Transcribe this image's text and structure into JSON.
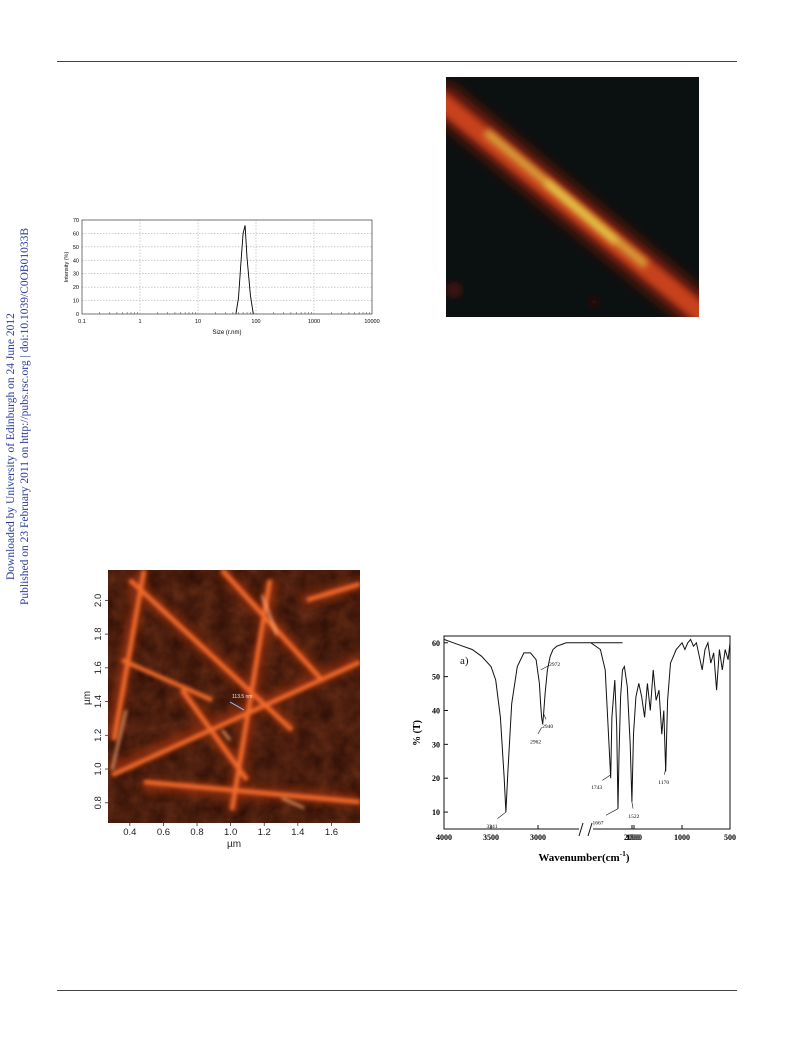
{
  "sidebar": {
    "downloaded": "Downloaded by University of Edinburgh on 24 June 2012",
    "published": "Published on 23 February 2011 on http://pubs.rsc.org | doi:10.1039/C0OB01033B"
  },
  "colors": {
    "sidebar_text": "#2b3b9c",
    "afm_dark": "#2a0c04",
    "afm_bright": "#ff9a5a",
    "fluorescence_bg": "#0b1010"
  },
  "chart_data": [
    {
      "type": "line",
      "title": "",
      "xlabel": "Size (r.nm)",
      "ylabel": "Intensity (%)",
      "x_scale": "log",
      "xlim": [
        0.1,
        10000
      ],
      "ylim": [
        0,
        70
      ],
      "x_ticks": [
        "0.1",
        "1",
        "10",
        "100",
        "1000",
        "10000"
      ],
      "y_ticks": [
        "0",
        "10",
        "20",
        "30",
        "40",
        "50",
        "60",
        "70"
      ],
      "grid": true,
      "series": [
        {
          "x": [
            45,
            50,
            55,
            60,
            65,
            70,
            80,
            90
          ],
          "y": [
            0,
            12,
            38,
            60,
            66,
            42,
            14,
            0
          ]
        }
      ]
    },
    {
      "type": "line",
      "title": "",
      "panel_label": "a)",
      "xlabel": "Wavenumber(cm-1)",
      "xlabel_base": "Wavenumber(cm",
      "xlabel_sup": "-1",
      "xlabel_close": ")",
      "ylabel": "% (T)",
      "xlim": [
        4000,
        500
      ],
      "ylim": [
        5,
        62
      ],
      "x_ticks": [
        "4000",
        "3500",
        "3000",
        "2000",
        "1500",
        "1000",
        "500"
      ],
      "y_ticks": [
        "10",
        "20",
        "30",
        "40",
        "50",
        "60"
      ],
      "axis_break": true,
      "peak_labels": [
        {
          "label": "3341",
          "x": 3341,
          "y": 10
        },
        {
          "label": "2962",
          "x": 2962,
          "y": 35
        },
        {
          "label": "2940",
          "x": 2940,
          "y": 39
        },
        {
          "label": "2972",
          "x": 2972,
          "y": 52
        },
        {
          "label": "1743",
          "x": 1743,
          "y": 21
        },
        {
          "label": "1667",
          "x": 1667,
          "y": 11
        },
        {
          "label": "1522",
          "x": 1522,
          "y": 13
        },
        {
          "label": "1170",
          "x": 1170,
          "y": 23
        }
      ],
      "series": [
        {
          "x": [
            4000,
            3900,
            3800,
            3700,
            3600,
            3500,
            3450,
            3400,
            3360,
            3341,
            3320,
            3280,
            3220,
            3150,
            3080,
            3020,
            2985,
            2972,
            2962,
            2950,
            2940,
            2925,
            2900,
            2870,
            2840,
            2800,
            2750,
            2700,
            2600,
            2500,
            2300,
            2100,
            1950,
            1850,
            1800,
            1760,
            1743,
            1730,
            1700,
            1680,
            1667,
            1655,
            1640,
            1620,
            1600,
            1570,
            1540,
            1522,
            1505,
            1480,
            1450,
            1420,
            1390,
            1360,
            1330,
            1300,
            1270,
            1240,
            1210,
            1190,
            1170,
            1150,
            1120,
            1090,
            1060,
            1030,
            1000,
            970,
            940,
            910,
            880,
            850,
            820,
            790,
            760,
            730,
            700,
            670,
            640,
            610,
            580,
            550,
            520,
            500
          ],
          "y": [
            61,
            60,
            59,
            58,
            56,
            53,
            49,
            38,
            20,
            10,
            22,
            42,
            53,
            57,
            57,
            55,
            48,
            42,
            38,
            36,
            39,
            45,
            52,
            56,
            58,
            59,
            59.5,
            60,
            60,
            60,
            60,
            60,
            60,
            58,
            52,
            30,
            20,
            38,
            49,
            35,
            11,
            28,
            44,
            52,
            53,
            47,
            30,
            13,
            33,
            44,
            48,
            44,
            38,
            48,
            40,
            52,
            43,
            46,
            33,
            40,
            22,
            43,
            54,
            56,
            58,
            59,
            60,
            58,
            60,
            61,
            59,
            60,
            56,
            52,
            58,
            60,
            54,
            57,
            46,
            58,
            52,
            58,
            55,
            60
          ]
        }
      ]
    }
  ],
  "afm_image": {
    "xlabel": "µm",
    "ylabel": "µm",
    "x_ticks": [
      "0.4",
      "0.6",
      "0.8",
      "1.0",
      "1.2",
      "1.4",
      "1.6"
    ],
    "y_ticks": [
      "0.8",
      "1.0",
      "1.2",
      "1.4",
      "1.6",
      "1.8",
      "2.0"
    ],
    "annotation": "113.5 nm"
  }
}
